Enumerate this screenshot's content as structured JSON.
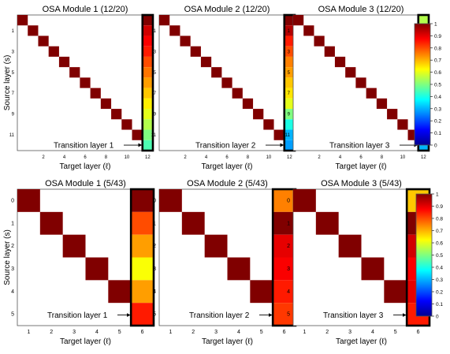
{
  "chart_data": {
    "type": "heatmap",
    "colormap": "jet",
    "rows": [
      {
        "size": 13,
        "ylabel": "Source layer (s)",
        "xlabel": "Target layer (ℓ)",
        "xticks": [
          "2",
          "4",
          "6",
          "8",
          "10",
          "12"
        ],
        "xtick_values": [
          2,
          4,
          6,
          8,
          10,
          12
        ],
        "yticks": [
          "1",
          "3",
          "5",
          "7",
          "9",
          "11"
        ],
        "ytick_values": [
          1,
          3,
          5,
          7,
          9,
          11
        ],
        "colorbar_ticks": [
          "0",
          "0.1",
          "0.2",
          "0.3",
          "0.4",
          "0.5",
          "0.6",
          "0.7",
          "0.8",
          "0.9",
          "1"
        ],
        "panels": [
          {
            "title": "OSA Module 1 (12/20)",
            "transition_label": "Transition layer 1",
            "diagonal_value": 1,
            "transition_column": [
              1.0,
              0.92,
              0.88,
              0.85,
              0.8,
              0.76,
              0.72,
              0.68,
              0.64,
              0.6,
              0.55,
              0.5,
              0.45
            ]
          },
          {
            "title": "OSA Module 2 (12/20)",
            "transition_label": "Transition layer 2",
            "diagonal_value": 1,
            "transition_column": [
              1.0,
              0.95,
              0.85,
              0.8,
              0.75,
              0.72,
              0.68,
              0.65,
              0.6,
              0.5,
              0.4,
              0.3,
              0.28
            ]
          },
          {
            "title": "OSA Module 3 (12/20)",
            "transition_label": "Transition layer 3",
            "diagonal_value": 1,
            "transition_column": [
              0.55,
              1.0,
              0.95,
              0.85,
              0.82,
              0.75,
              0.7,
              0.65,
              0.6,
              0.55,
              0.5,
              0.4,
              0.3
            ]
          }
        ]
      },
      {
        "size": 6,
        "ylabel": "Source layer (s)",
        "xlabel": "Target layer (ℓ)",
        "xticks": [
          "1",
          "2",
          "3",
          "4",
          "5",
          "6"
        ],
        "xtick_values": [
          1,
          2,
          3,
          4,
          5,
          6
        ],
        "yticks": [
          "0",
          "1",
          "2",
          "3",
          "4",
          "5"
        ],
        "ytick_values": [
          0,
          1,
          2,
          3,
          4,
          5
        ],
        "colorbar_ticks": [
          "0",
          "0.1",
          "0.2",
          "0.3",
          "0.4",
          "0.5",
          "0.6",
          "0.7",
          "0.8",
          "0.9",
          "1"
        ],
        "panels": [
          {
            "title": "OSA Module 1 (5/43)",
            "transition_label": "Transition layer 1",
            "diagonal_value": 1,
            "transition_column": [
              1.0,
              0.8,
              0.72,
              0.62,
              0.72,
              0.85
            ]
          },
          {
            "title": "OSA Module 2 (5/43)",
            "transition_label": "Transition layer 2",
            "diagonal_value": 1,
            "transition_column": [
              0.75,
              1.0,
              0.9,
              0.88,
              0.85,
              0.82
            ]
          },
          {
            "title": "OSA Module 3 (5/43)",
            "transition_label": "Transition layer 3",
            "diagonal_value": 1,
            "transition_column": [
              0.68,
              1.0,
              0.92,
              0.88,
              0.9,
              0.85
            ]
          }
        ]
      }
    ]
  }
}
